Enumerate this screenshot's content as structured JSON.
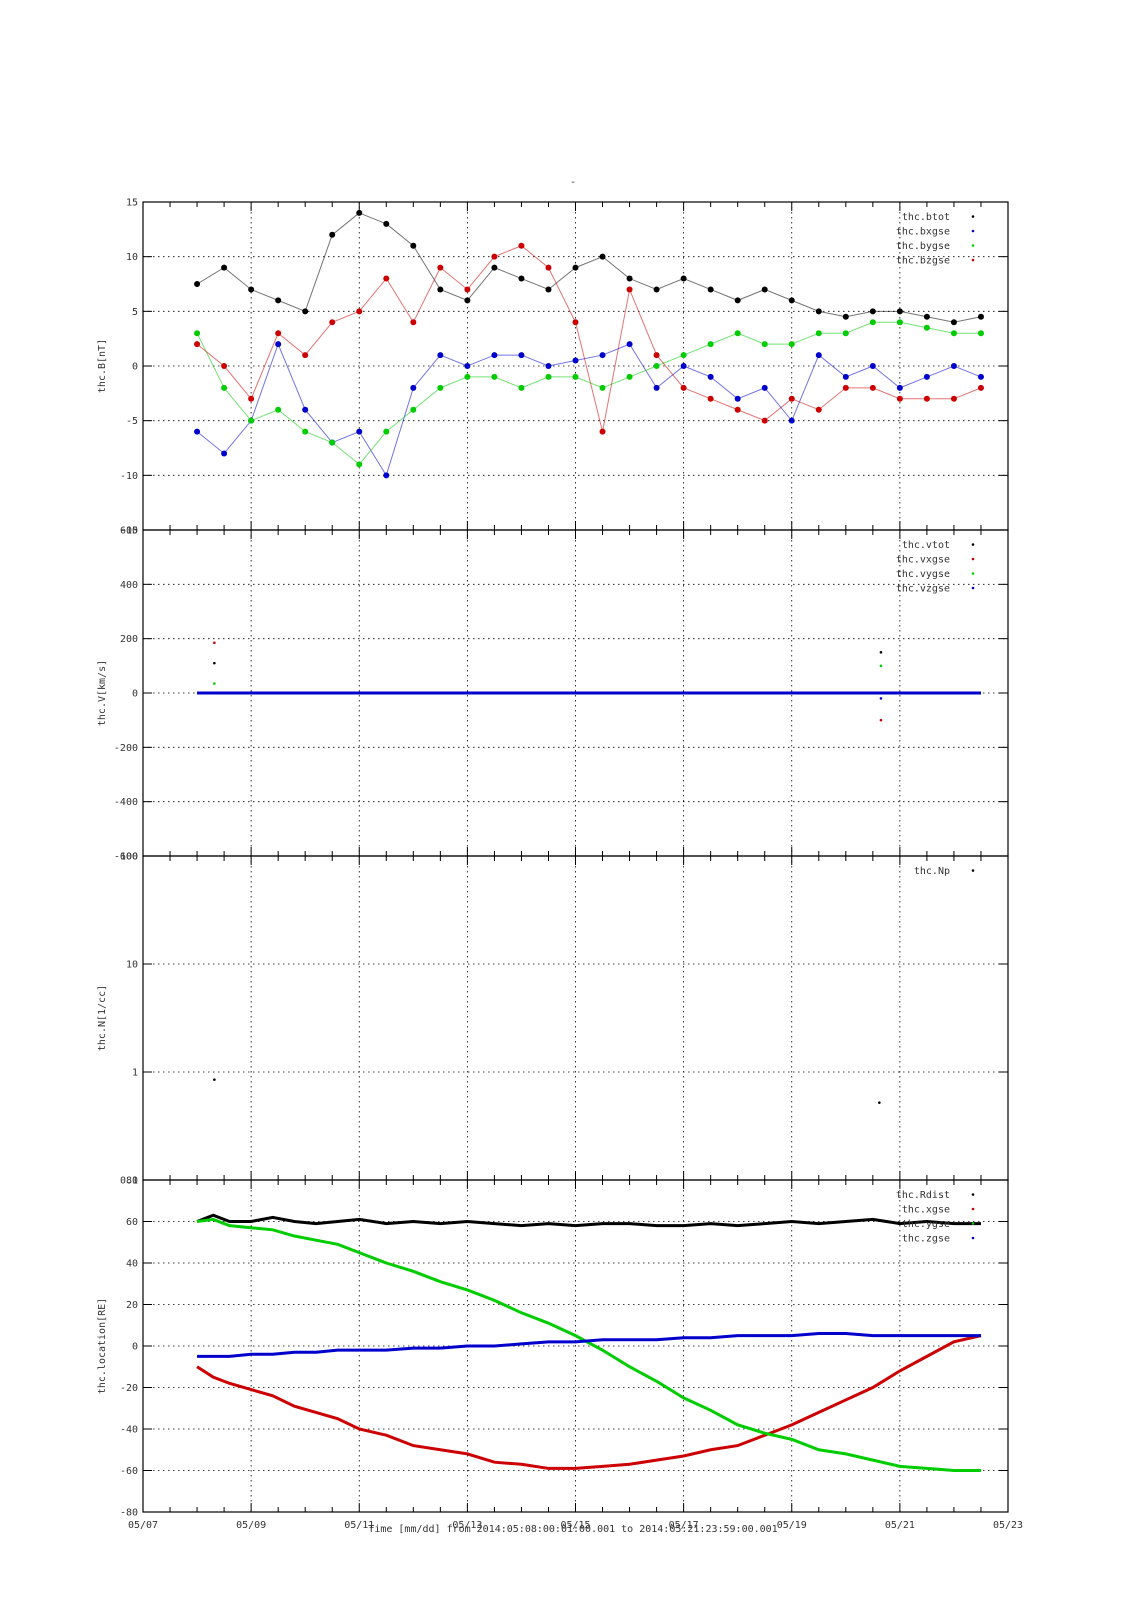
{
  "figure": {
    "title": "-",
    "time_axis_label": "Time [mm/dd]  from 2014:05:08:00:01:00.001  to  2014:05:21:23:59:00.001",
    "x_tick_labels": [
      "05/07",
      "05/09",
      "05/11",
      "05/13",
      "05/15",
      "05/17",
      "05/19",
      "05/21",
      "05/23"
    ]
  },
  "chart_data": [
    {
      "type": "scatter",
      "ylabel": "thc.B[nT]",
      "xlim": [
        0,
        16
      ],
      "ylim": [
        -15,
        15
      ],
      "yticks": [
        -15,
        -10,
        -5,
        0,
        5,
        10,
        15
      ],
      "grid": true,
      "legend_position": "top-right",
      "series": [
        {
          "name": "thc.btot",
          "color": "#000000",
          "x": [
            1,
            1.5,
            2,
            2.5,
            3,
            3.5,
            4,
            4.5,
            5,
            5.5,
            6,
            6.5,
            7,
            7.5,
            8,
            8.5,
            9,
            9.5,
            10,
            10.5,
            11,
            11.5,
            12,
            12.5,
            13,
            13.5,
            14,
            14.5,
            15,
            15.5
          ],
          "values": [
            7.5,
            9,
            7,
            6,
            5,
            12,
            14,
            13,
            11,
            7,
            6,
            9,
            8,
            7,
            9,
            10,
            8,
            7,
            8,
            7,
            6,
            7,
            6,
            5,
            4.5,
            5,
            5,
            4.5,
            4,
            4.5
          ]
        },
        {
          "name": "thc.bxgse",
          "color": "#0000cc",
          "x": [
            1,
            1.5,
            2,
            2.5,
            3,
            3.5,
            4,
            4.5,
            5,
            5.5,
            6,
            6.5,
            7,
            7.5,
            8,
            8.5,
            9,
            9.5,
            10,
            10.5,
            11,
            11.5,
            12,
            12.5,
            13,
            13.5,
            14,
            14.5,
            15,
            15.5
          ],
          "values": [
            -6,
            -8,
            -5,
            2,
            -4,
            -7,
            -6,
            -10,
            -2,
            1,
            0,
            1,
            1,
            0,
            0.5,
            1,
            2,
            -2,
            0,
            -1,
            -3,
            -2,
            -5,
            1,
            -1,
            0,
            -2,
            -1,
            0,
            -1
          ]
        },
        {
          "name": "thc.bygse",
          "color": "#00cc00",
          "x": [
            1,
            1.5,
            2,
            2.5,
            3,
            3.5,
            4,
            4.5,
            5,
            5.5,
            6,
            6.5,
            7,
            7.5,
            8,
            8.5,
            9,
            9.5,
            10,
            10.5,
            11,
            11.5,
            12,
            12.5,
            13,
            13.5,
            14,
            14.5,
            15,
            15.5
          ],
          "values": [
            3,
            -2,
            -5,
            -4,
            -6,
            -7,
            -9,
            -6,
            -4,
            -2,
            -1,
            -1,
            -2,
            -1,
            -1,
            -2,
            -1,
            0,
            1,
            2,
            3,
            2,
            2,
            3,
            3,
            4,
            4,
            3.5,
            3,
            3
          ]
        },
        {
          "name": "thc.bzgse",
          "color": "#cc0000",
          "x": [
            1,
            1.5,
            2,
            2.5,
            3,
            3.5,
            4,
            4.5,
            5,
            5.5,
            6,
            6.5,
            7,
            7.5,
            8,
            8.5,
            9,
            9.5,
            10,
            10.5,
            11,
            11.5,
            12,
            12.5,
            13,
            13.5,
            14,
            14.5,
            15,
            15.5
          ],
          "values": [
            2,
            0,
            -3,
            3,
            1,
            4,
            5,
            8,
            4,
            9,
            7,
            10,
            11,
            9,
            4,
            -6,
            7,
            1,
            -2,
            -3,
            -4,
            -5,
            -3,
            -4,
            -2,
            -2,
            -3,
            -3,
            -3,
            -2
          ]
        }
      ]
    },
    {
      "type": "scatter",
      "ylabel": "thc.V[km/s]",
      "xlim": [
        0,
        16
      ],
      "ylim": [
        -600,
        600
      ],
      "yticks": [
        -600,
        -400,
        -200,
        0,
        200,
        400,
        600
      ],
      "grid": true,
      "legend_position": "top-right",
      "series": [
        {
          "name": "thc.vtot",
          "color": "#000000",
          "x": [
            1,
            15.5
          ],
          "values": [
            0,
            0
          ]
        },
        {
          "name": "thc.vxgse",
          "color": "#cc0000",
          "x": [
            1,
            15.5
          ],
          "values": [
            0,
            0
          ]
        },
        {
          "name": "thc.vygse",
          "color": "#00cc00",
          "x": [
            1,
            15.5
          ],
          "values": [
            0,
            0
          ]
        },
        {
          "name": "thc.vzgse",
          "color": "#0000cc",
          "x": [
            1,
            15.5
          ],
          "values": [
            0,
            0
          ]
        }
      ],
      "outliers": [
        {
          "x": 1.32,
          "y": 185,
          "color": "#cc0000"
        },
        {
          "x": 1.32,
          "y": 110,
          "color": "#000000"
        },
        {
          "x": 1.32,
          "y": 35,
          "color": "#00cc00"
        },
        {
          "x": 13.65,
          "y": 150,
          "color": "#000000"
        },
        {
          "x": 13.65,
          "y": 100,
          "color": "#00cc00"
        },
        {
          "x": 13.65,
          "y": -20,
          "color": "#0000cc"
        },
        {
          "x": 13.65,
          "y": -100,
          "color": "#cc0000"
        }
      ]
    },
    {
      "type": "scatter",
      "ylabel": "thc.N[1/cc]",
      "xlim": [
        0,
        16
      ],
      "ylim": [
        0.1,
        100
      ],
      "yscale": "log",
      "yticks": [
        0.1,
        1,
        10,
        100
      ],
      "grid": true,
      "legend_position": "top-right",
      "series": [
        {
          "name": "thc.Np",
          "color": "#000000",
          "x": [
            1.32,
            13.62
          ],
          "values": [
            0.85,
            0.52
          ]
        }
      ]
    },
    {
      "type": "line",
      "ylabel": "thc.location[RE]",
      "xlim": [
        0,
        16
      ],
      "ylim": [
        -80,
        80
      ],
      "yticks": [
        -80,
        -60,
        -40,
        -20,
        0,
        20,
        40,
        60,
        80
      ],
      "grid": true,
      "legend_position": "top-right",
      "series": [
        {
          "name": "thc.Rdist",
          "color": "#000000",
          "x": [
            1,
            1.3,
            1.6,
            2,
            2.4,
            2.8,
            3.2,
            3.6,
            4,
            4.5,
            5,
            5.5,
            6,
            6.5,
            7,
            7.5,
            8,
            8.5,
            9,
            9.5,
            10,
            10.5,
            11,
            11.5,
            12,
            12.5,
            13,
            13.5,
            14,
            14.5,
            15,
            15.5
          ],
          "values": [
            60,
            63,
            60,
            60,
            62,
            60,
            59,
            60,
            61,
            59,
            60,
            59,
            60,
            59,
            58,
            59,
            58,
            59,
            59,
            58,
            58,
            59,
            58,
            59,
            60,
            59,
            60,
            61,
            59,
            60,
            59,
            59
          ]
        },
        {
          "name": "thc.xgse",
          "color": "#cc0000",
          "x": [
            1,
            1.3,
            1.6,
            2,
            2.4,
            2.8,
            3.2,
            3.6,
            4,
            4.5,
            5,
            5.5,
            6,
            6.5,
            7,
            7.5,
            8,
            8.5,
            9,
            9.5,
            10,
            10.5,
            11,
            11.5,
            12,
            12.5,
            13,
            13.5,
            14,
            14.5,
            15,
            15.5
          ],
          "values": [
            -10,
            -15,
            -18,
            -21,
            -24,
            -29,
            -32,
            -35,
            -40,
            -43,
            -48,
            -50,
            -52,
            -56,
            -57,
            -59,
            -59,
            -58,
            -57,
            -55,
            -53,
            -50,
            -48,
            -43,
            -38,
            -32,
            -26,
            -20,
            -12,
            -5,
            2,
            5
          ]
        },
        {
          "name": "thc.ygse",
          "color": "#00cc00",
          "x": [
            1,
            1.3,
            1.6,
            2,
            2.4,
            2.8,
            3.2,
            3.6,
            4,
            4.5,
            5,
            5.5,
            6,
            6.5,
            7,
            7.5,
            8,
            8.5,
            9,
            9.5,
            10,
            10.5,
            11,
            11.5,
            12,
            12.5,
            13,
            13.5,
            14,
            14.5,
            15,
            15.5
          ],
          "values": [
            60,
            61,
            58,
            57,
            56,
            53,
            51,
            49,
            45,
            40,
            36,
            31,
            27,
            22,
            16,
            11,
            5,
            -2,
            -10,
            -17,
            -25,
            -31,
            -38,
            -42,
            -45,
            -50,
            -52,
            -55,
            -58,
            -59,
            -60,
            -60
          ]
        },
        {
          "name": "thc.zgse",
          "color": "#0000cc",
          "x": [
            1,
            1.3,
            1.6,
            2,
            2.4,
            2.8,
            3.2,
            3.6,
            4,
            4.5,
            5,
            5.5,
            6,
            6.5,
            7,
            7.5,
            8,
            8.5,
            9,
            9.5,
            10,
            10.5,
            11,
            11.5,
            12,
            12.5,
            13,
            13.5,
            14,
            14.5,
            15,
            15.5
          ],
          "values": [
            -5,
            -5,
            -5,
            -4,
            -4,
            -3,
            -3,
            -2,
            -2,
            -2,
            -1,
            -1,
            0,
            0,
            1,
            2,
            2,
            3,
            3,
            3,
            4,
            4,
            5,
            5,
            5,
            6,
            6,
            5,
            5,
            5,
            5,
            5
          ]
        }
      ]
    }
  ]
}
